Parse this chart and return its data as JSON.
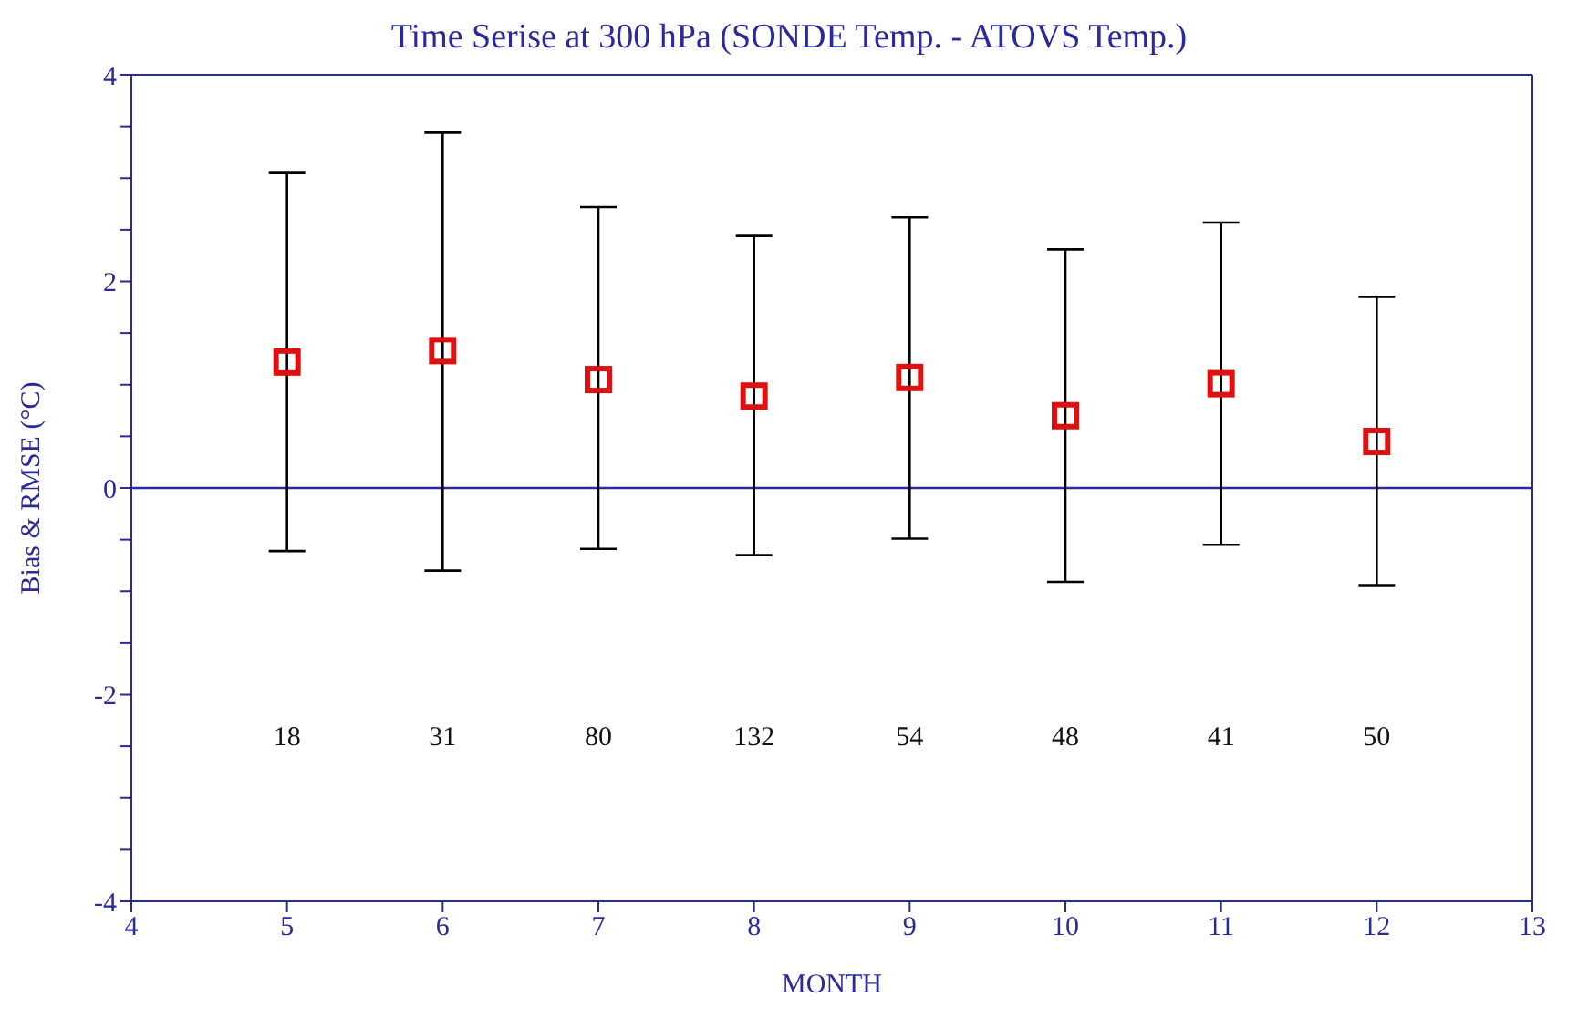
{
  "chart_data": {
    "type": "scatter",
    "title": "Time Serise at 300 hPa (SONDE Temp. - ATOVS Temp.)",
    "xlabel": "MONTH",
    "ylabel": "Bias & RMSE (°C)",
    "x": [
      5,
      6,
      7,
      8,
      9,
      10,
      11,
      12
    ],
    "series": [
      {
        "color": "#dd1111",
        "values": [
          1.22,
          1.33,
          1.05,
          0.89,
          1.07,
          0.7,
          1.01,
          0.45
        ],
        "errors": [
          [
            -0.61,
            3.05
          ],
          [
            -0.8,
            3.44
          ],
          [
            -0.59,
            2.72
          ],
          [
            -0.65,
            2.44
          ],
          [
            -0.49,
            2.62
          ],
          [
            -0.91,
            2.31
          ],
          [
            -0.55,
            2.57
          ],
          [
            -0.94,
            1.85
          ]
        ]
      }
    ],
    "marker": "square",
    "xlim": [
      4,
      13
    ],
    "xticks": [
      4,
      5,
      6,
      7,
      8,
      9,
      10,
      11,
      12,
      13
    ],
    "ylim": [
      -4,
      4
    ],
    "yticks": [
      -4,
      {
        "value": -3.5,
        "label": null
      },
      {
        "value": -3,
        "label": null
      },
      {
        "value": -2.5,
        "label": null
      },
      -2,
      {
        "value": -1.5,
        "label": null
      },
      {
        "value": -1,
        "label": null
      },
      {
        "value": -0.5,
        "label": null
      },
      0,
      {
        "value": 0.5,
        "label": null
      },
      {
        "value": 1,
        "label": null
      },
      {
        "value": 1.5,
        "label": null
      },
      2,
      {
        "value": 2.5,
        "label": null
      },
      {
        "value": 3,
        "label": null
      },
      {
        "value": 3.5,
        "label": null
      },
      4
    ],
    "ref_lines": [
      {
        "axis": "y",
        "value": 0,
        "color": "#2a2a9a"
      }
    ],
    "annotations": [
      "18",
      "31",
      "80",
      "132",
      "54",
      "48",
      "41",
      "50"
    ]
  }
}
